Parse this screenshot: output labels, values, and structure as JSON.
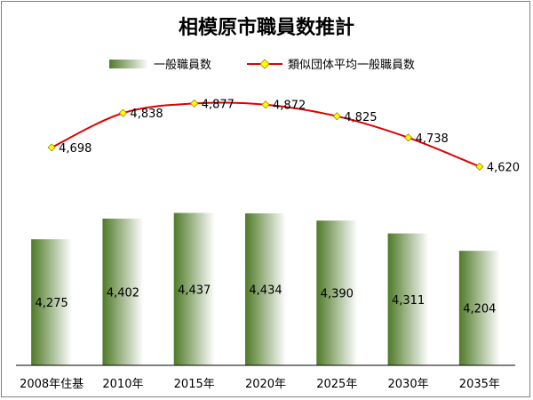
{
  "chart_data": {
    "type": "bar",
    "title": "相模原市職員数推計",
    "categories": [
      "2008年住基",
      "2010年",
      "2015年",
      "2020年",
      "2025年",
      "2030年",
      "2035年"
    ],
    "series": [
      {
        "name": "一般職員数",
        "type": "bar",
        "values": [
          4275,
          4402,
          4437,
          4434,
          4390,
          4311,
          4204
        ],
        "labels": [
          "4,275",
          "4,402",
          "4,437",
          "4,434",
          "4,390",
          "4,311",
          "4,204"
        ],
        "color": "#4f7a28"
      },
      {
        "name": "類似団体平均一般職員数",
        "type": "line",
        "values": [
          4698,
          4838,
          4877,
          4872,
          4825,
          4738,
          4620
        ],
        "labels": [
          "4,698",
          "4,838",
          "4,877",
          "4,872",
          "4,825",
          "4,738",
          "4,620"
        ],
        "color": "#e00000",
        "marker_color": "#ffff00"
      }
    ],
    "xlabel": "",
    "ylabel": "",
    "grid": false,
    "legend": "top",
    "ylim": [
      3500,
      5000
    ]
  }
}
